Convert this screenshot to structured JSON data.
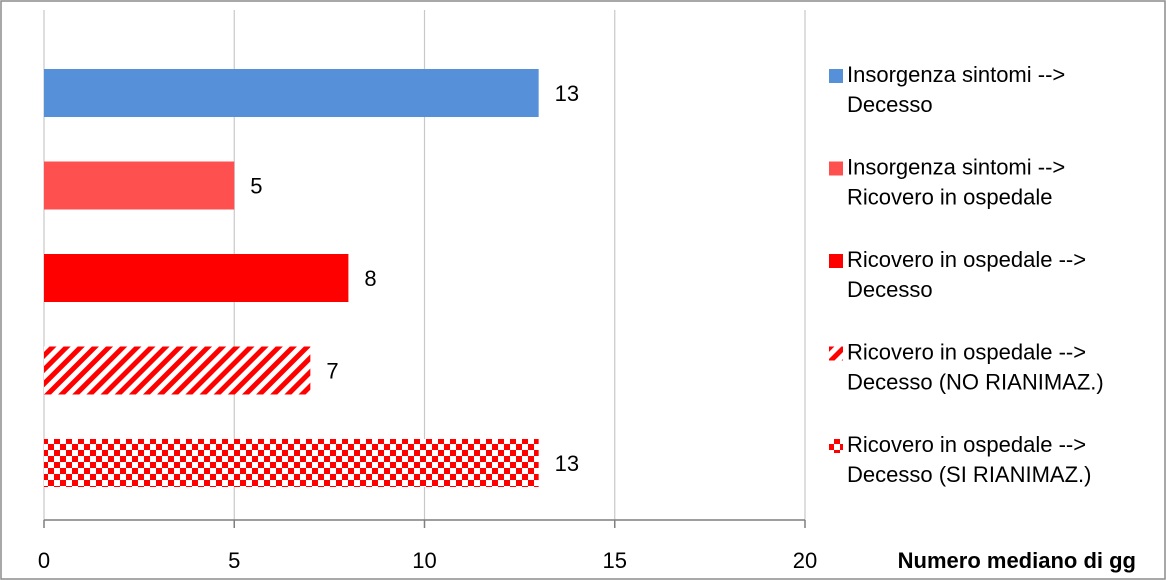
{
  "chart_data": {
    "type": "bar",
    "orientation": "horizontal",
    "categories": [
      "Insorgenza sintomi --> Decesso",
      "Insorgenza sintomi --> Ricovero in ospedale",
      "Ricovero in ospedale --> Decesso",
      "Ricovero in ospedale --> Decesso (NO RIANIMAZ.)",
      "Ricovero in ospedale --> Decesso (SI RIANIMAZ.)"
    ],
    "series": [
      {
        "name": "Insorgenza sintomi --> Decesso",
        "legend_lines": [
          "Insorgenza sintomi -->",
          "Decesso"
        ],
        "value": 13,
        "value_label": "13",
        "color": "#5590d8",
        "pattern": "solid"
      },
      {
        "name": "Insorgenza sintomi --> Ricovero in ospedale",
        "legend_lines": [
          "Insorgenza sintomi -->",
          "Ricovero in ospedale"
        ],
        "value": 5,
        "value_label": "5",
        "color": "#ff5050",
        "pattern": "solid"
      },
      {
        "name": "Ricovero in ospedale --> Decesso",
        "legend_lines": [
          "Ricovero in ospedale -->",
          "Decesso"
        ],
        "value": 8,
        "value_label": "8",
        "color": "#ff0000",
        "pattern": "solid"
      },
      {
        "name": "Ricovero in ospedale --> Decesso (NO RIANIMAZ.)",
        "legend_lines": [
          "Ricovero in ospedale -->",
          "Decesso (NO RIANIMAZ.)"
        ],
        "value": 7,
        "value_label": "7",
        "color": "#ff0000",
        "pattern": "diagonal-stripes"
      },
      {
        "name": "Ricovero in ospedale --> Decesso (SI RIANIMAZ.)",
        "legend_lines": [
          "Ricovero in ospedale -->",
          "Decesso (SI RIANIMAZ.)"
        ],
        "value": 13,
        "value_label": "13",
        "color": "#ff0000",
        "pattern": "checkerboard"
      }
    ],
    "x_ticks": [
      0,
      5,
      10,
      15,
      20
    ],
    "x_tick_labels": [
      "0",
      "5",
      "10",
      "15",
      "20"
    ],
    "xlim": [
      0,
      20
    ],
    "xlabel": "Numero mediano di gg",
    "title": "",
    "grid": "vertical",
    "legend_position": "right"
  }
}
